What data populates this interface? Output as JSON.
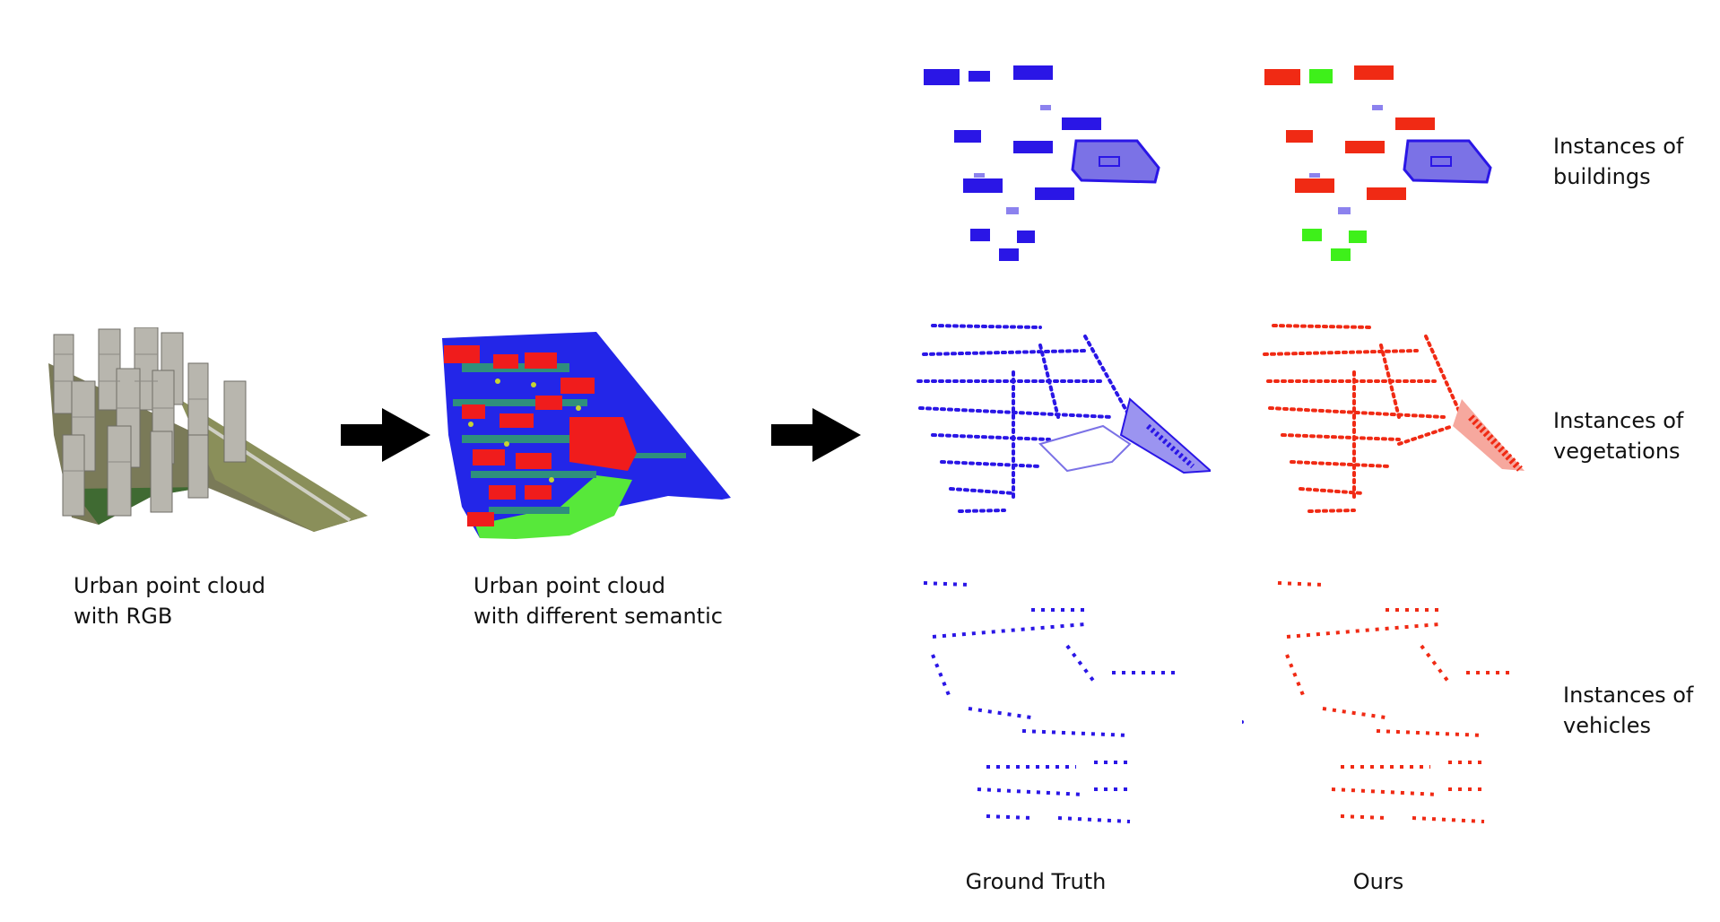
{
  "captions": {
    "rgb": {
      "line1": "Urban point cloud",
      "line2": "with RGB"
    },
    "semantic": {
      "line1": "Urban point cloud",
      "line2": "with different semantic"
    }
  },
  "rows": [
    {
      "line1": "Instances of",
      "line2": "buildings"
    },
    {
      "line1": "Instances of",
      "line2": "vegetations"
    },
    {
      "line1": "Instances of",
      "line2": "vehicles"
    }
  ],
  "columns": {
    "ground_truth": "Ground Truth",
    "ours": "Ours"
  },
  "colors": {
    "gt_blue": "#2a16e6",
    "ours_red": "#f02a14",
    "ours_green": "#3ef01a",
    "semantic_blue": "#2326e8",
    "semantic_teal": "#2f8f7c",
    "semantic_red": "#f01c1c",
    "semantic_green": "#57e83a",
    "arrow": "#000000"
  }
}
